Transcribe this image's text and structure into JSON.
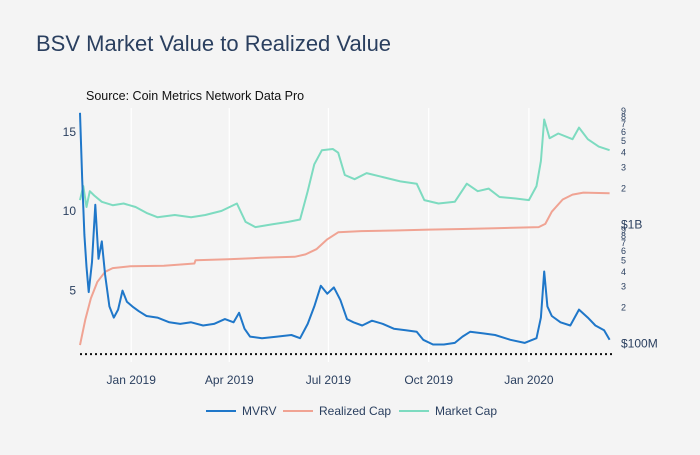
{
  "chart_data": {
    "type": "line",
    "title": "BSV Market Value to Realized Value",
    "annotation": "Source: Coin Metrics Network Data Pro",
    "x_ticks": [
      "Jan 2019",
      "Apr 2019",
      "Jul 2019",
      "Oct 2019",
      "Jan 2020"
    ],
    "x_tick_dates": [
      "2019-01-01",
      "2019-04-01",
      "2019-07-01",
      "2019-10-01",
      "2020-01-01"
    ],
    "x_range": [
      "2018-11-15",
      "2020-03-20"
    ],
    "grid": true,
    "legend_position": "bottom",
    "y_left": {
      "ticks": [
        "5",
        "10",
        "15"
      ],
      "tick_values": [
        5,
        10,
        15
      ],
      "range": [
        0.5,
        16.5
      ],
      "reference_line": 1
    },
    "y_right": {
      "scale": "log",
      "range": [
        70000000,
        9500000000
      ],
      "labeled_ticks": [
        {
          "label": "$100M",
          "value": 100000000
        },
        {
          "label": "2",
          "value": 200000000
        },
        {
          "label": "3",
          "value": 300000000
        },
        {
          "label": "4",
          "value": 400000000
        },
        {
          "label": "5",
          "value": 500000000
        },
        {
          "label": "6",
          "value": 600000000
        },
        {
          "label": "7",
          "value": 700000000
        },
        {
          "label": "8",
          "value": 800000000
        },
        {
          "label": "9",
          "value": 900000000
        },
        {
          "label": "$1B",
          "value": 1000000000
        },
        {
          "label": "2",
          "value": 2000000000
        },
        {
          "label": "3",
          "value": 3000000000
        },
        {
          "label": "4",
          "value": 4000000000
        },
        {
          "label": "5",
          "value": 5000000000
        },
        {
          "label": "6",
          "value": 6000000000
        },
        {
          "label": "7",
          "value": 7000000000
        },
        {
          "label": "8",
          "value": 8000000000
        },
        {
          "label": "9",
          "value": 9000000000
        }
      ]
    },
    "series": [
      {
        "name": "MVRV",
        "axis": "left",
        "color": "#1f77c9",
        "points": [
          [
            "2018-11-15",
            16.2
          ],
          [
            "2018-11-17",
            12.0
          ],
          [
            "2018-11-19",
            8.5
          ],
          [
            "2018-11-21",
            6.5
          ],
          [
            "2018-11-23",
            4.9
          ],
          [
            "2018-11-26",
            6.8
          ],
          [
            "2018-11-29",
            10.4
          ],
          [
            "2018-12-02",
            7.0
          ],
          [
            "2018-12-05",
            8.1
          ],
          [
            "2018-12-08",
            6.0
          ],
          [
            "2018-12-12",
            4.0
          ],
          [
            "2018-12-16",
            3.3
          ],
          [
            "2018-12-20",
            3.8
          ],
          [
            "2018-12-24",
            5.0
          ],
          [
            "2018-12-28",
            4.3
          ],
          [
            "2019-01-02",
            4.0
          ],
          [
            "2019-01-08",
            3.7
          ],
          [
            "2019-01-15",
            3.4
          ],
          [
            "2019-01-25",
            3.3
          ],
          [
            "2019-02-05",
            3.0
          ],
          [
            "2019-02-15",
            2.9
          ],
          [
            "2019-02-25",
            3.0
          ],
          [
            "2019-03-08",
            2.8
          ],
          [
            "2019-03-18",
            2.9
          ],
          [
            "2019-03-28",
            3.2
          ],
          [
            "2019-04-05",
            3.0
          ],
          [
            "2019-04-10",
            3.6
          ],
          [
            "2019-04-15",
            2.6
          ],
          [
            "2019-04-20",
            2.1
          ],
          [
            "2019-05-01",
            2.0
          ],
          [
            "2019-05-15",
            2.1
          ],
          [
            "2019-05-28",
            2.2
          ],
          [
            "2019-06-05",
            2.0
          ],
          [
            "2019-06-12",
            2.9
          ],
          [
            "2019-06-18",
            4.0
          ],
          [
            "2019-06-24",
            5.3
          ],
          [
            "2019-06-30",
            4.8
          ],
          [
            "2019-07-06",
            5.2
          ],
          [
            "2019-07-12",
            4.4
          ],
          [
            "2019-07-18",
            3.2
          ],
          [
            "2019-07-24",
            3.0
          ],
          [
            "2019-08-01",
            2.8
          ],
          [
            "2019-08-10",
            3.1
          ],
          [
            "2019-08-20",
            2.9
          ],
          [
            "2019-08-30",
            2.6
          ],
          [
            "2019-09-10",
            2.5
          ],
          [
            "2019-09-20",
            2.4
          ],
          [
            "2019-09-26",
            1.9
          ],
          [
            "2019-10-05",
            1.6
          ],
          [
            "2019-10-15",
            1.6
          ],
          [
            "2019-10-25",
            1.7
          ],
          [
            "2019-11-01",
            2.1
          ],
          [
            "2019-11-08",
            2.4
          ],
          [
            "2019-11-20",
            2.3
          ],
          [
            "2019-12-01",
            2.2
          ],
          [
            "2019-12-15",
            1.9
          ],
          [
            "2019-12-28",
            1.7
          ],
          [
            "2020-01-08",
            2.0
          ],
          [
            "2020-01-12",
            3.3
          ],
          [
            "2020-01-15",
            6.2
          ],
          [
            "2020-01-18",
            4.0
          ],
          [
            "2020-01-22",
            3.4
          ],
          [
            "2020-01-30",
            3.0
          ],
          [
            "2020-02-08",
            2.8
          ],
          [
            "2020-02-16",
            3.8
          ],
          [
            "2020-02-24",
            3.3
          ],
          [
            "2020-03-02",
            2.8
          ],
          [
            "2020-03-10",
            2.5
          ],
          [
            "2020-03-15",
            1.9
          ]
        ]
      },
      {
        "name": "Realized Cap",
        "axis": "right",
        "color": "#f0a393",
        "points": [
          [
            "2018-11-15",
            97000000
          ],
          [
            "2018-11-20",
            160000000
          ],
          [
            "2018-11-25",
            240000000
          ],
          [
            "2018-12-01",
            330000000
          ],
          [
            "2018-12-08",
            400000000
          ],
          [
            "2018-12-15",
            430000000
          ],
          [
            "2018-12-31",
            445000000
          ],
          [
            "2019-01-31",
            450000000
          ],
          [
            "2019-02-28",
            470000000
          ],
          [
            "2019-03-01",
            500000000
          ],
          [
            "2019-03-31",
            510000000
          ],
          [
            "2019-04-30",
            525000000
          ],
          [
            "2019-05-31",
            535000000
          ],
          [
            "2019-06-10",
            560000000
          ],
          [
            "2019-06-20",
            620000000
          ],
          [
            "2019-06-30",
            750000000
          ],
          [
            "2019-07-10",
            860000000
          ],
          [
            "2019-07-31",
            880000000
          ],
          [
            "2019-08-31",
            890000000
          ],
          [
            "2019-10-01",
            905000000
          ],
          [
            "2019-11-01",
            915000000
          ],
          [
            "2019-12-01",
            930000000
          ],
          [
            "2020-01-10",
            950000000
          ],
          [
            "2020-01-16",
            1010000000
          ],
          [
            "2020-01-22",
            1280000000
          ],
          [
            "2020-02-01",
            1620000000
          ],
          [
            "2020-02-10",
            1780000000
          ],
          [
            "2020-02-20",
            1850000000
          ],
          [
            "2020-03-15",
            1830000000
          ]
        ]
      },
      {
        "name": "Market Cap",
        "axis": "right",
        "color": "#7ddbc0",
        "points": [
          [
            "2018-11-15",
            1600000000
          ],
          [
            "2018-11-18",
            2100000000
          ],
          [
            "2018-11-21",
            1400000000
          ],
          [
            "2018-11-24",
            1900000000
          ],
          [
            "2018-11-28",
            1750000000
          ],
          [
            "2018-12-05",
            1550000000
          ],
          [
            "2018-12-15",
            1450000000
          ],
          [
            "2018-12-25",
            1500000000
          ],
          [
            "2019-01-05",
            1400000000
          ],
          [
            "2019-01-15",
            1250000000
          ],
          [
            "2019-01-25",
            1150000000
          ],
          [
            "2019-02-10",
            1200000000
          ],
          [
            "2019-02-25",
            1150000000
          ],
          [
            "2019-03-10",
            1200000000
          ],
          [
            "2019-03-25",
            1300000000
          ],
          [
            "2019-04-08",
            1500000000
          ],
          [
            "2019-04-16",
            1050000000
          ],
          [
            "2019-04-25",
            950000000
          ],
          [
            "2019-05-10",
            1000000000
          ],
          [
            "2019-05-25",
            1050000000
          ],
          [
            "2019-06-05",
            1100000000
          ],
          [
            "2019-06-12",
            1900000000
          ],
          [
            "2019-06-18",
            3200000000
          ],
          [
            "2019-06-25",
            4200000000
          ],
          [
            "2019-07-05",
            4300000000
          ],
          [
            "2019-07-10",
            4000000000
          ],
          [
            "2019-07-16",
            2600000000
          ],
          [
            "2019-07-25",
            2400000000
          ],
          [
            "2019-08-05",
            2700000000
          ],
          [
            "2019-08-20",
            2500000000
          ],
          [
            "2019-09-05",
            2300000000
          ],
          [
            "2019-09-20",
            2200000000
          ],
          [
            "2019-09-27",
            1600000000
          ],
          [
            "2019-10-10",
            1500000000
          ],
          [
            "2019-10-25",
            1550000000
          ],
          [
            "2019-11-05",
            2200000000
          ],
          [
            "2019-11-15",
            1900000000
          ],
          [
            "2019-11-25",
            2000000000
          ],
          [
            "2019-12-05",
            1700000000
          ],
          [
            "2019-12-20",
            1650000000
          ],
          [
            "2020-01-01",
            1600000000
          ],
          [
            "2020-01-08",
            2100000000
          ],
          [
            "2020-01-12",
            3400000000
          ],
          [
            "2020-01-15",
            7600000000
          ],
          [
            "2020-01-20",
            5300000000
          ],
          [
            "2020-01-28",
            5800000000
          ],
          [
            "2020-02-10",
            5200000000
          ],
          [
            "2020-02-16",
            6500000000
          ],
          [
            "2020-02-24",
            5200000000
          ],
          [
            "2020-03-05",
            4500000000
          ],
          [
            "2020-03-15",
            4200000000
          ]
        ]
      }
    ]
  }
}
